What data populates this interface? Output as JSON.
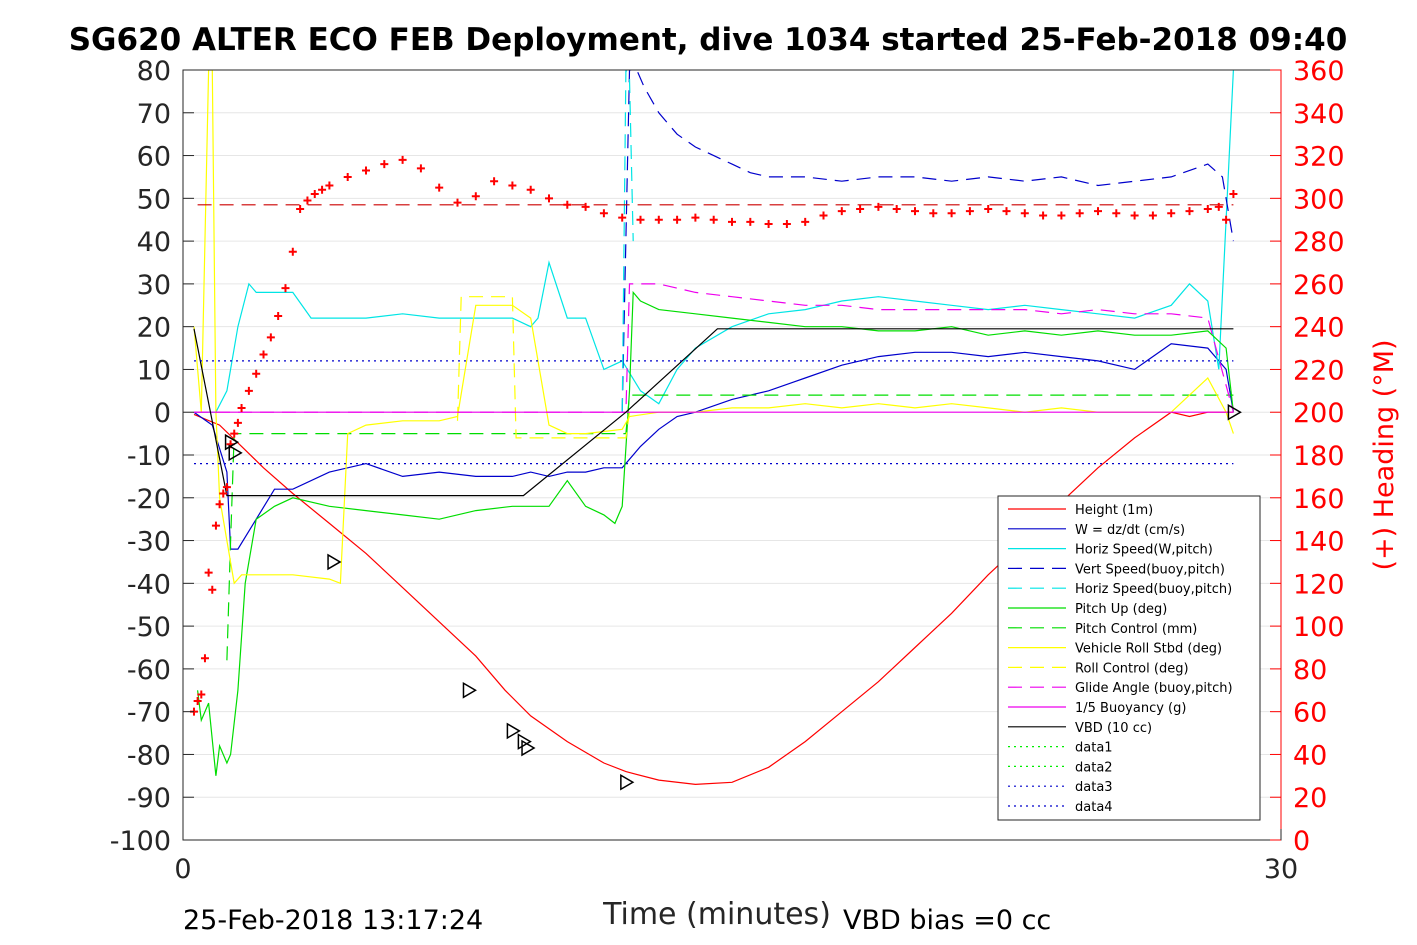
{
  "chart_data": {
    "type": "line",
    "title": "SG620 ALTER ECO FEB Deployment, dive 1034 started 25-Feb-2018 09:40",
    "xlabel": "Time (minutes)",
    "ylabel_right": "(+) Heading (°M)",
    "xlim": [
      0,
      30
    ],
    "ylim": [
      -100,
      80
    ],
    "ylim_right": [
      0,
      360
    ],
    "x_ticks": [
      "0",
      "30"
    ],
    "y_ticks": [
      "80",
      "70",
      "60",
      "50",
      "40",
      "30",
      "20",
      "10",
      "0",
      "-10",
      "-20",
      "-30",
      "-40",
      "-50",
      "-60",
      "-70",
      "-80",
      "-90",
      "-100"
    ],
    "y_ticks_right": [
      "360",
      "340",
      "320",
      "300",
      "280",
      "260",
      "240",
      "220",
      "200",
      "180",
      "160",
      "140",
      "120",
      "100",
      "80",
      "60",
      "40",
      "20",
      "0"
    ],
    "grid": true,
    "legend_position": "lower-right",
    "footer_left": "25-Feb-2018 13:17:24",
    "footer_right": "VBD bias =0 cc",
    "series": [
      {
        "name": "Height (1m)",
        "color": "#ff0000",
        "style": "solid",
        "x": [
          0.3,
          1.0,
          1.6,
          2.2,
          3.0,
          4.0,
          5.0,
          6.0,
          7.0,
          8.0,
          8.8,
          9.5,
          10.5,
          11.5,
          12.1,
          13.0,
          14.0,
          15.0,
          16.0,
          17.0,
          18.0,
          19.0,
          20.0,
          21.0,
          22.0,
          23.0,
          24.0,
          25.0,
          26.0,
          27.0,
          27.5,
          28.0,
          28.7
        ],
        "y": [
          -0.5,
          -3,
          -8,
          -13,
          -19,
          -26,
          -33,
          -41,
          -49,
          -57,
          -65,
          -71,
          -77,
          -82,
          -84,
          -86,
          -87,
          -86.5,
          -83,
          -77,
          -70,
          -63,
          -55,
          -47,
          -38,
          -30,
          -21,
          -13,
          -6,
          0,
          -1,
          0,
          0
        ]
      },
      {
        "name": "W = dz/dt (cm/s)",
        "color": "#0000cc",
        "style": "solid",
        "x": [
          0.3,
          0.8,
          1.2,
          1.3,
          1.5,
          2.0,
          2.5,
          3.0,
          4.0,
          5.0,
          6.0,
          7.0,
          8.0,
          9.0,
          9.5,
          10.0,
          10.5,
          11.0,
          11.5,
          12.0,
          12.5,
          13.0,
          13.5,
          14.0,
          15.0,
          16.0,
          17.0,
          18.0,
          19.0,
          20.0,
          21.0,
          22.0,
          23.0,
          24.0,
          25.0,
          26.0,
          27.0,
          28.0,
          28.5,
          28.7
        ],
        "y": [
          0,
          -3,
          -14,
          -32,
          -32,
          -25,
          -18,
          -18,
          -14,
          -12,
          -15,
          -14,
          -15,
          -15,
          -14,
          -15,
          -14,
          -14,
          -13,
          -13,
          -8,
          -4,
          -1,
          0,
          3,
          5,
          8,
          11,
          13,
          14,
          14,
          13,
          14,
          13,
          12,
          10,
          16,
          15,
          10,
          0
        ]
      },
      {
        "name": "Horiz Speed(W,pitch)",
        "color": "#00e5e5",
        "style": "solid",
        "x": [
          0.3,
          0.9,
          1.2,
          1.5,
          1.8,
          2.0,
          2.5,
          3.0,
          3.5,
          4.0,
          5.0,
          6.0,
          7.0,
          8.0,
          9.0,
          9.5,
          9.7,
          10.0,
          10.5,
          11.0,
          11.5,
          12.0,
          12.5,
          13.0,
          13.5,
          14.0,
          15.0,
          16.0,
          17.0,
          18.0,
          19.0,
          20.0,
          21.0,
          22.0,
          23.0,
          24.0,
          25.0,
          26.0,
          27.0,
          27.5,
          28.0,
          28.3,
          28.7
        ],
        "y": [
          0,
          0,
          5,
          20,
          30,
          28,
          28,
          28,
          22,
          22,
          22,
          23,
          22,
          22,
          22,
          20,
          22,
          35,
          22,
          22,
          10,
          12,
          5,
          2,
          10,
          15,
          20,
          23,
          24,
          26,
          27,
          26,
          25,
          24,
          25,
          24,
          23,
          22,
          25,
          30,
          26,
          10,
          80
        ]
      },
      {
        "name": "Vert Speed(buoy,pitch)",
        "color": "#0000cc",
        "style": "dash",
        "x": [
          12.0,
          12.2,
          12.4,
          12.6,
          13.0,
          13.5,
          14.0,
          14.5,
          15.0,
          15.5,
          16.0,
          17.0,
          18.0,
          19.0,
          20.0,
          21.0,
          22.0,
          23.0,
          24.0,
          25.0,
          26.0,
          27.0,
          28.0,
          28.4,
          28.7
        ],
        "y": [
          0,
          80,
          80,
          76,
          70,
          65,
          62,
          60,
          58,
          56,
          55,
          55,
          54,
          55,
          55,
          54,
          55,
          54,
          55,
          53,
          54,
          55,
          58,
          55,
          40
        ]
      },
      {
        "name": "Horiz Speed(buoy,pitch)",
        "color": "#00e5e5",
        "style": "dash",
        "x": [
          12.0,
          12.1,
          12.2,
          12.3
        ],
        "y": [
          0,
          80,
          78,
          40
        ]
      },
      {
        "name": "Pitch Up (deg)",
        "color": "#00dd00",
        "style": "solid",
        "x": [
          0.4,
          0.5,
          0.7,
          0.9,
          1.0,
          1.2,
          1.3,
          1.5,
          1.7,
          2.0,
          2.5,
          3.0,
          4.0,
          5.0,
          6.0,
          7.0,
          8.0,
          9.0,
          10.0,
          10.5,
          11.0,
          11.5,
          11.8,
          12.0,
          12.2,
          12.3,
          12.5,
          13.0,
          14.0,
          15.0,
          16.0,
          17.0,
          18.0,
          19.0,
          20.0,
          21.0,
          22.0,
          23.0,
          24.0,
          25.0,
          26.0,
          27.0,
          28.0,
          28.5,
          28.7
        ],
        "y": [
          -65,
          -72,
          -68,
          -85,
          -78,
          -82,
          -80,
          -65,
          -40,
          -25,
          -22,
          -20,
          -22,
          -23,
          -24,
          -25,
          -23,
          -22,
          -22,
          -16,
          -22,
          -24,
          -26,
          -22,
          5,
          28,
          26,
          24,
          23,
          22,
          21,
          20,
          20,
          19,
          19,
          20,
          18,
          19,
          18,
          19,
          18,
          18,
          19,
          15,
          0
        ]
      },
      {
        "name": "Pitch Control (mm)",
        "color": "#00dd00",
        "style": "dash",
        "x": [
          1.2,
          1.3,
          1.4,
          2.0,
          12.1,
          12.2,
          12.3,
          28.7
        ],
        "y": [
          -58,
          -30,
          -5,
          -5,
          -5,
          4,
          4,
          4
        ]
      },
      {
        "name": "Vehicle Roll Stbd (deg)",
        "color": "#ffff00",
        "style": "solid",
        "x": [
          0.3,
          0.5,
          0.7,
          0.8,
          0.9,
          1.0,
          1.2,
          1.4,
          1.6,
          2.0,
          2.5,
          3.0,
          4.0,
          4.3,
          4.5,
          5.0,
          6.0,
          7.0,
          7.5,
          8.0,
          9.0,
          9.5,
          10.0,
          10.5,
          11.0,
          12.0,
          12.2,
          13.0,
          14.0,
          15.0,
          16.0,
          17.0,
          18.0,
          19.0,
          20.0,
          21.0,
          22.0,
          23.0,
          24.0,
          25.0,
          26.0,
          27.0,
          28.0,
          28.5,
          28.7
        ],
        "y": [
          20,
          0,
          80,
          80,
          0,
          -20,
          -30,
          -40,
          -38,
          -38,
          -38,
          -38,
          -39,
          -40,
          -5,
          -3,
          -2,
          -2,
          -1,
          25,
          25,
          22,
          -3,
          -5,
          -5,
          -4,
          -1,
          0,
          0,
          1,
          1,
          2,
          1,
          2,
          1,
          2,
          1,
          0,
          1,
          0,
          0,
          0,
          8,
          0,
          -5
        ]
      },
      {
        "name": "Roll Control (deg)",
        "color": "#ffff00",
        "style": "dash",
        "x": [
          7.5,
          7.6,
          8.3,
          8.4,
          9.0,
          9.1,
          12.1,
          12.2
        ],
        "y": [
          -2,
          27,
          27,
          27,
          27,
          -6,
          -6,
          0
        ]
      },
      {
        "name": "Glide Angle (buoy,pitch)",
        "color": "#ee00ee",
        "style": "dash",
        "x": [
          0.3,
          12.1,
          12.2,
          13.0,
          14.0,
          15.0,
          16.0,
          17.0,
          18.0,
          19.0,
          20.0,
          21.0,
          22.0,
          23.0,
          24.0,
          25.0,
          26.0,
          27.0,
          28.0,
          28.7
        ],
        "y": [
          0,
          0,
          30,
          30,
          28,
          27,
          26,
          25,
          25,
          24,
          24,
          24,
          24,
          24,
          23,
          24,
          23,
          23,
          22,
          0
        ]
      },
      {
        "name": "1/5 Buoyancy (g)",
        "color": "#ee00ee",
        "style": "solid",
        "x": [
          0.3,
          28.7
        ],
        "y": [
          0,
          0
        ]
      },
      {
        "name": "VBD (10 cc)",
        "color": "#000000",
        "style": "solid",
        "x": [
          0.3,
          1.2,
          1.3,
          9.3,
          12.1,
          14.6,
          28.7
        ],
        "y": [
          19.5,
          -19.5,
          -19.5,
          -19.5,
          0,
          19.5,
          19.5
        ]
      },
      {
        "name": "data1",
        "color": "#00ee00",
        "style": "dot",
        "x": [],
        "y": []
      },
      {
        "name": "data2",
        "color": "#00ee00",
        "style": "dot",
        "x": [],
        "y": []
      },
      {
        "name": "data3",
        "color": "#0000cc",
        "style": "dot",
        "x": [
          0.3,
          28.7
        ],
        "y": [
          12,
          12
        ]
      },
      {
        "name": "data4",
        "color": "#0000cc",
        "style": "dot",
        "x": [
          0.3,
          28.7
        ],
        "y": [
          -12,
          -12
        ]
      }
    ],
    "heading_reference": {
      "color": "#cc0000",
      "style": "dash",
      "x": [
        0.4,
        28.7
      ],
      "heading": [
        297,
        297
      ]
    },
    "heading_markers": {
      "color": "#ff0000",
      "marker": "+",
      "x": [
        0.3,
        0.4,
        0.5,
        0.6,
        0.7,
        0.8,
        0.9,
        1.0,
        1.1,
        1.2,
        1.3,
        1.4,
        1.5,
        1.6,
        1.8,
        2.0,
        2.2,
        2.4,
        2.6,
        2.8,
        3.0,
        3.2,
        3.4,
        3.6,
        3.8,
        4.0,
        4.5,
        5.0,
        5.5,
        6.0,
        6.5,
        7.0,
        7.5,
        8.0,
        8.5,
        9.0,
        9.5,
        10.0,
        10.5,
        11.0,
        11.5,
        12.0,
        12.5,
        13.0,
        13.5,
        14.0,
        14.5,
        15.0,
        15.5,
        16.0,
        16.5,
        17.0,
        17.5,
        18.0,
        18.5,
        19.0,
        19.5,
        20.0,
        20.5,
        21.0,
        21.5,
        22.0,
        22.5,
        23.0,
        23.5,
        24.0,
        24.5,
        25.0,
        25.5,
        26.0,
        26.5,
        27.0,
        27.5,
        28.0,
        28.3,
        28.5,
        28.7
      ],
      "heading": [
        60,
        65,
        68,
        85,
        125,
        117,
        147,
        157,
        162,
        165,
        185,
        190,
        195,
        202,
        210,
        218,
        227,
        235,
        245,
        258,
        275,
        295,
        299,
        302,
        304,
        306,
        310,
        313,
        316,
        318,
        314,
        305,
        298,
        301,
        308,
        306,
        304,
        300,
        297,
        296,
        293,
        291,
        290,
        290,
        290,
        291,
        290,
        289,
        289,
        288,
        288,
        289,
        292,
        294,
        295,
        296,
        295,
        294,
        293,
        293,
        294,
        295,
        294,
        293,
        292,
        292,
        293,
        294,
        293,
        292,
        292,
        293,
        294,
        295,
        296,
        290,
        302
      ]
    },
    "dive_markers": {
      "color": "#000000",
      "marker": "triangle",
      "x": [
        1.3,
        1.4,
        4.1,
        7.8,
        9.0,
        9.3,
        9.4,
        12.1,
        28.7
      ],
      "y": [
        -7,
        -9.5,
        -35,
        -65,
        -74.5,
        -77,
        -78.5,
        -86.5,
        0
      ]
    }
  }
}
